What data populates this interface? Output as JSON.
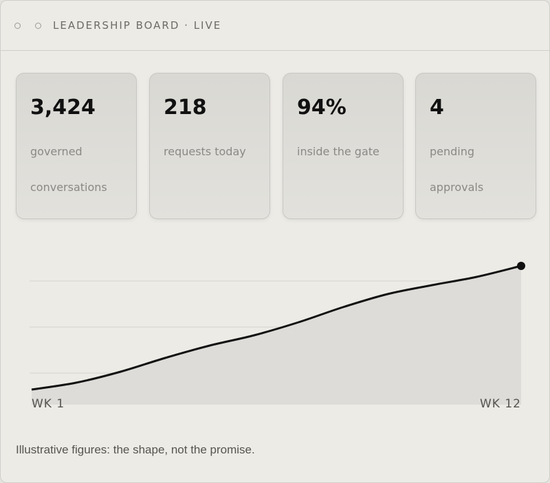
{
  "header": {
    "title": "LEADERSHIP BOARD · LIVE"
  },
  "stats": [
    {
      "value": "3,424",
      "label": "governed conversations"
    },
    {
      "value": "218",
      "label": "requests today"
    },
    {
      "value": "94%",
      "label": "inside the gate"
    },
    {
      "value": "4",
      "label": "pending approvals"
    }
  ],
  "chart_data": {
    "type": "area",
    "x": [
      "WK 1",
      null,
      null,
      null,
      null,
      null,
      null,
      null,
      null,
      null,
      null,
      "WK 12"
    ],
    "values": [
      11,
      16,
      24,
      34,
      43,
      50.5,
      60,
      71,
      80.5,
      87,
      93,
      101
    ],
    "ylim": [
      0,
      105
    ],
    "yticks": [
      23,
      56.5,
      90
    ],
    "grid": true,
    "color": "#111111",
    "fill": "#dddcd8"
  },
  "footnote": "Illustrative figures: the shape, not the promise."
}
